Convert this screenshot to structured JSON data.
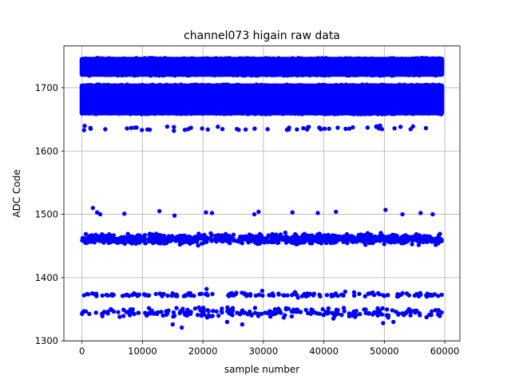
{
  "chart_data": {
    "type": "scatter",
    "title": "channel073 higain raw data",
    "xlabel": "sample number",
    "ylabel": "ADC Code",
    "xlim": [
      -3000,
      62500
    ],
    "ylim": [
      1300,
      1766
    ],
    "xticks": [
      0,
      10000,
      20000,
      30000,
      40000,
      50000,
      60000
    ],
    "xtick_labels": [
      "0",
      "10000",
      "20000",
      "30000",
      "40000",
      "50000",
      "60000"
    ],
    "yticks": [
      1300,
      1400,
      1500,
      1600,
      1700
    ],
    "ytick_labels": [
      "1300",
      "1400",
      "1500",
      "1600",
      "1700"
    ],
    "grid": true,
    "marker_color": "#0000ff",
    "marker_radius_note": "dots",
    "x_range": [
      0,
      59500
    ],
    "series": [
      {
        "dense_bands": [
          {
            "y_min": 1721,
            "y_max": 1745,
            "description": "continuous band"
          },
          {
            "y_min": 1660,
            "y_max": 1703,
            "description": "continuous band"
          }
        ],
        "sparse_levels": [
          {
            "y_center": 1636,
            "spread": 3,
            "count": 55
          },
          {
            "y_center": 1461,
            "spread": 6,
            "count": 900
          },
          {
            "y_center": 1373,
            "spread": 3,
            "count": 150
          },
          {
            "y_center": 1345,
            "spread": 6,
            "count": 240
          }
        ],
        "outliers": [
          {
            "x": 1800,
            "y": 1510
          },
          {
            "x": 2500,
            "y": 1503
          },
          {
            "x": 3000,
            "y": 1500
          },
          {
            "x": 7000,
            "y": 1501
          },
          {
            "x": 12800,
            "y": 1505
          },
          {
            "x": 15300,
            "y": 1498
          },
          {
            "x": 20500,
            "y": 1503
          },
          {
            "x": 21500,
            "y": 1502
          },
          {
            "x": 28500,
            "y": 1500
          },
          {
            "x": 29200,
            "y": 1504
          },
          {
            "x": 34800,
            "y": 1503
          },
          {
            "x": 39000,
            "y": 1502
          },
          {
            "x": 42000,
            "y": 1504
          },
          {
            "x": 50200,
            "y": 1507
          },
          {
            "x": 53000,
            "y": 1500
          },
          {
            "x": 56000,
            "y": 1502
          },
          {
            "x": 58000,
            "y": 1500
          },
          {
            "x": 16500,
            "y": 1321
          },
          {
            "x": 15000,
            "y": 1326
          },
          {
            "x": 26500,
            "y": 1326
          },
          {
            "x": 49800,
            "y": 1328
          },
          {
            "x": 51500,
            "y": 1330
          },
          {
            "x": 24000,
            "y": 1330
          },
          {
            "x": 20600,
            "y": 1382
          },
          {
            "x": 29800,
            "y": 1379
          }
        ]
      }
    ]
  }
}
